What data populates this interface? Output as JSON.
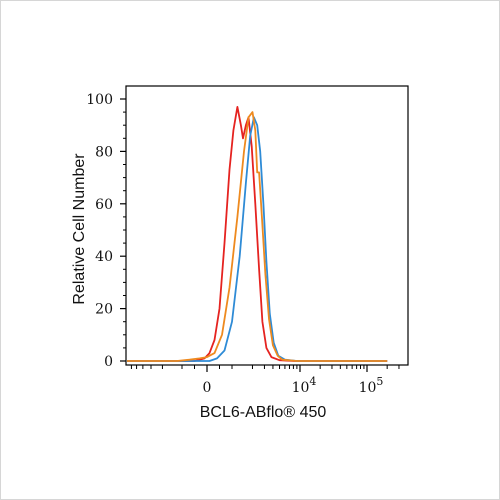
{
  "chart_data": {
    "type": "line",
    "title": "",
    "xlabel": "BCL6-ABflo® 450",
    "ylabel": "Relative Cell Number",
    "x_scale": "biexponential",
    "x_tick_labels": [
      {
        "value": 0,
        "base": "0",
        "exp": ""
      },
      {
        "value": 10000,
        "base": "10",
        "exp": "4"
      },
      {
        "value": 100000,
        "base": "10",
        "exp": "5"
      }
    ],
    "yticks": [
      0,
      20,
      40,
      60,
      80,
      100
    ],
    "ylim": [
      0,
      100
    ],
    "grid": false,
    "legend": "none",
    "series": [
      {
        "color": "#e52320",
        "points": [
          [
            -20000,
            0
          ],
          [
            -500,
            0
          ],
          [
            -100,
            1
          ],
          [
            100,
            3
          ],
          [
            300,
            8
          ],
          [
            500,
            20
          ],
          [
            700,
            45
          ],
          [
            900,
            73
          ],
          [
            1050,
            88
          ],
          [
            1200,
            97
          ],
          [
            1350,
            90
          ],
          [
            1450,
            85
          ],
          [
            1600,
            90
          ],
          [
            1750,
            93
          ],
          [
            1950,
            82
          ],
          [
            2200,
            60
          ],
          [
            2500,
            35
          ],
          [
            2800,
            15
          ],
          [
            3200,
            5
          ],
          [
            3800,
            1.5
          ],
          [
            5000,
            0.3
          ],
          [
            8000,
            0
          ],
          [
            200000,
            0
          ]
        ]
      },
      {
        "color": "#2e8bd6",
        "points": [
          [
            -20000,
            0
          ],
          [
            100,
            0
          ],
          [
            400,
            1
          ],
          [
            700,
            4
          ],
          [
            1000,
            15
          ],
          [
            1300,
            40
          ],
          [
            1600,
            68
          ],
          [
            1850,
            86
          ],
          [
            2100,
            93
          ],
          [
            2350,
            90
          ],
          [
            2600,
            80
          ],
          [
            2900,
            60
          ],
          [
            3200,
            38
          ],
          [
            3600,
            18
          ],
          [
            4100,
            7
          ],
          [
            4800,
            2
          ],
          [
            6000,
            0.5
          ],
          [
            9000,
            0
          ],
          [
            200000,
            0
          ]
        ]
      },
      {
        "color": "#ee8a1f",
        "points": [
          [
            -20000,
            0
          ],
          [
            -1200,
            0
          ],
          [
            -700,
            0.5
          ],
          [
            -300,
            1
          ],
          [
            0,
            1.5
          ],
          [
            300,
            3
          ],
          [
            600,
            10
          ],
          [
            900,
            28
          ],
          [
            1200,
            55
          ],
          [
            1500,
            80
          ],
          [
            1750,
            93
          ],
          [
            2000,
            95
          ],
          [
            2200,
            88
          ],
          [
            2350,
            72
          ],
          [
            2500,
            72
          ],
          [
            2750,
            55
          ],
          [
            3100,
            33
          ],
          [
            3500,
            16
          ],
          [
            4000,
            6
          ],
          [
            4700,
            2
          ],
          [
            5500,
            0.5
          ],
          [
            9000,
            0
          ],
          [
            200000,
            0
          ]
        ]
      }
    ]
  }
}
